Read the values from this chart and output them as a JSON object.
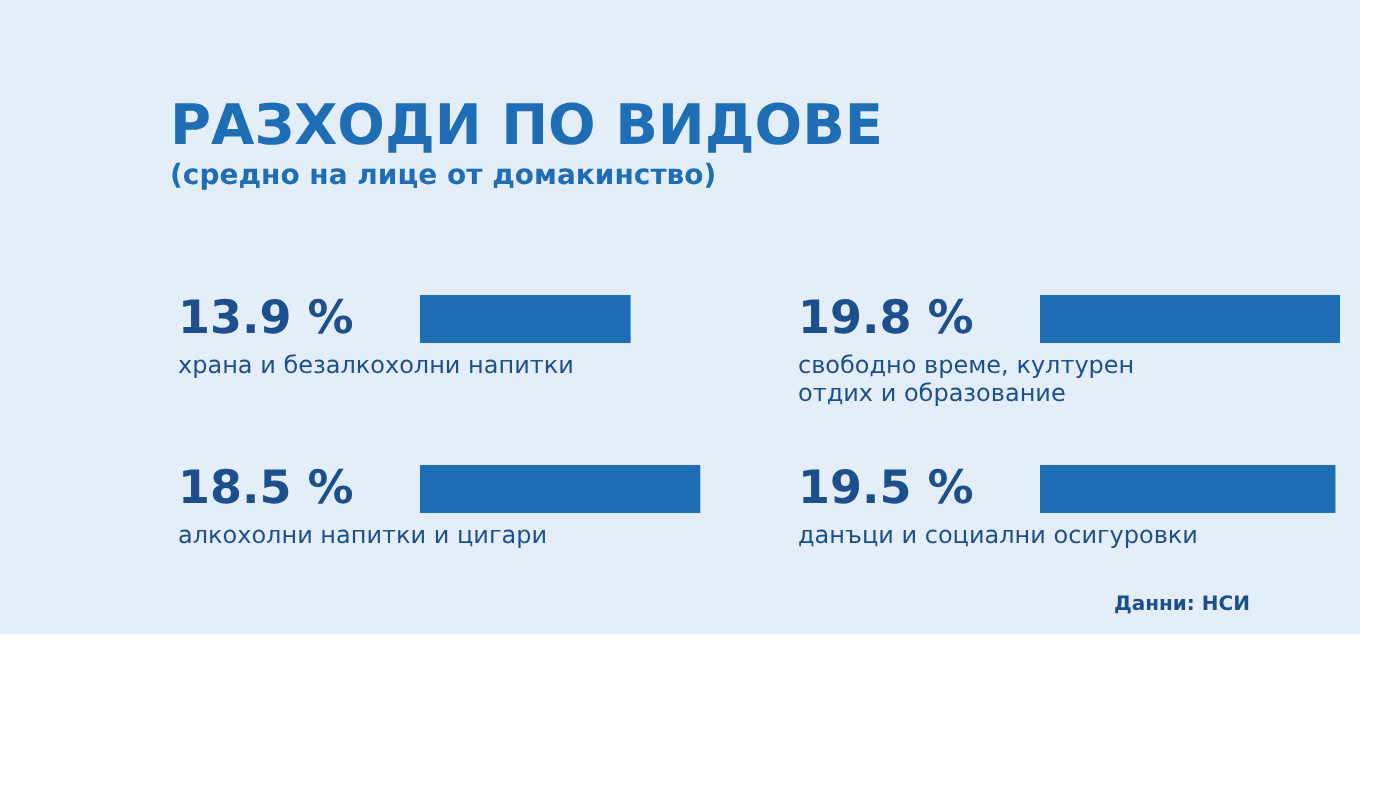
{
  "chart_data": [
    {
      "type": "bar",
      "orientation": "horizontal",
      "title": "РАЗХОДИ ПО ВИДОВЕ",
      "subtitle": "(средно на лице от домакинство)",
      "categories": [
        "храна и безалкохолни напитки",
        "алкохолни напитки и цигари"
      ],
      "values": [
        13.9,
        18.5
      ],
      "value_labels": [
        "13.9 %",
        "18.5 %"
      ],
      "color": "#1f6db5"
    },
    {
      "type": "bar",
      "orientation": "horizontal",
      "categories": [
        "свободно време, културен отдих и образование",
        "данъци и социални осигуровки"
      ],
      "values": [
        19.8,
        19.5
      ],
      "value_labels": [
        "19.8 %",
        "19.5 %"
      ],
      "color": "#1f6db5",
      "annotations": [
        "Данни: НСИ"
      ]
    }
  ]
}
